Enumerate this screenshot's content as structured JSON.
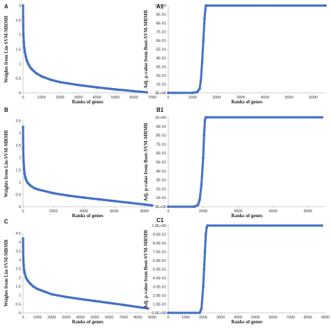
{
  "colors": {
    "series": "#4472c4",
    "axis": "#bfbfbf"
  },
  "chart_data": [
    {
      "id": "A",
      "type": "scatter",
      "label": "A",
      "ylabel": "Weights from Lin-SVM-MRMR",
      "xlabel": "Ranks of genes",
      "xlim": [
        0,
        7000
      ],
      "ylim": [
        0,
        3
      ],
      "xticks": [
        0,
        1000,
        2000,
        3000,
        4000,
        5000,
        6000,
        7000
      ],
      "yticks": [
        0,
        0.5,
        1,
        1.5,
        2,
        2.5,
        3
      ],
      "ytick_labels": [
        "0",
        "0.5",
        "1",
        "1.5",
        "2",
        "2.5",
        "3"
      ],
      "x": [
        1,
        5,
        10,
        20,
        40,
        70,
        100,
        150,
        200,
        300,
        400,
        500,
        700,
        1000,
        1500,
        2000,
        3000,
        4000,
        5000,
        6000,
        6700
      ],
      "y": [
        3.0,
        2.6,
        2.3,
        2.0,
        1.75,
        1.55,
        1.4,
        1.25,
        1.12,
        0.97,
        0.87,
        0.8,
        0.68,
        0.57,
        0.45,
        0.37,
        0.27,
        0.19,
        0.12,
        0.06,
        0.02
      ]
    },
    {
      "id": "A1",
      "type": "scatter",
      "label": "A1",
      "ylabel": "Adj. p-value from Boot-SVM-MRMR",
      "xlabel": "Ranks of genes",
      "xlim": [
        0,
        6500
      ],
      "ylim": [
        0,
        1
      ],
      "xticks": [
        0,
        1000,
        2000,
        3000,
        4000,
        5000,
        6000
      ],
      "yticks": [
        0,
        0.1,
        0.2,
        0.3,
        0.4,
        0.5,
        0.6,
        0.7,
        0.8,
        0.9,
        1
      ],
      "ytick_labels": [
        "0E+00",
        "1E-01",
        "2E-01",
        "3E-01",
        "4E-01",
        "5E-01",
        "6E-01",
        "7E-01",
        "8E-01",
        "9E-01",
        "1E+00"
      ],
      "x": [
        0,
        1000,
        1200,
        1300,
        1350,
        1400,
        1450,
        1500,
        1550,
        1600,
        6500
      ],
      "y": [
        0,
        0,
        0.01,
        0.05,
        0.15,
        0.35,
        0.6,
        0.85,
        1,
        1,
        1
      ]
    },
    {
      "id": "B",
      "type": "scatter",
      "label": "B",
      "ylabel": "Weights from Lin-SVM-MRMR",
      "xlabel": "Ranks of genes",
      "xlim": [
        0,
        8500
      ],
      "ylim": [
        0,
        3.5
      ],
      "xticks": [
        0,
        2000,
        4000,
        6000,
        8000
      ],
      "yticks": [
        0,
        0.5,
        1,
        1.5,
        2,
        2.5,
        3,
        3.5
      ],
      "ytick_labels": [
        "0",
        "0.5",
        "1",
        "1.5",
        "2",
        "2.5",
        "3",
        "3.5"
      ],
      "x": [
        1,
        5,
        10,
        20,
        40,
        70,
        100,
        150,
        200,
        300,
        500,
        800,
        1000,
        2000,
        3000,
        4000,
        5000,
        6000,
        7000,
        8000,
        8500
      ],
      "y": [
        3.25,
        2.8,
        2.4,
        2.1,
        1.8,
        1.55,
        1.35,
        1.2,
        1.1,
        0.98,
        0.85,
        0.74,
        0.7,
        0.55,
        0.45,
        0.37,
        0.3,
        0.23,
        0.16,
        0.09,
        0.05
      ]
    },
    {
      "id": "B1",
      "type": "scatter",
      "label": "B1",
      "ylabel": "Adj. p-value from Boot-SVM-MRMR",
      "xlabel": "Ranks of genes",
      "xlim": [
        0,
        9000
      ],
      "ylim": [
        0,
        1
      ],
      "xticks": [
        0,
        2000,
        4000,
        6000,
        8000
      ],
      "yticks": [
        0,
        0.1,
        0.2,
        0.3,
        0.4,
        0.5,
        0.6,
        0.7,
        0.8,
        0.9,
        1
      ],
      "ytick_labels": [
        "0E+00",
        "1E-01",
        "2E-01",
        "3E-01",
        "4E-01",
        "5E-01",
        "6E-01",
        "7E-01",
        "8E-01",
        "9E-01",
        "1E+00"
      ],
      "x": [
        0,
        1500,
        1700,
        1800,
        1900,
        2000,
        2050,
        2100,
        2150,
        8800
      ],
      "y": [
        0,
        0,
        0.02,
        0.08,
        0.25,
        0.55,
        0.8,
        0.97,
        1,
        1
      ]
    },
    {
      "id": "C",
      "type": "scatter",
      "label": "C",
      "ylabel": "Weights from Lin-SVM-MRMR",
      "xlabel": "Ranks of genes",
      "xlim": [
        0,
        9000
      ],
      "ylim": [
        0,
        4.5
      ],
      "xticks": [
        0,
        1000,
        2000,
        3000,
        4000,
        5000,
        6000,
        7000,
        8000,
        9000
      ],
      "yticks": [
        0,
        0.5,
        1,
        1.5,
        2,
        2.5,
        3,
        3.5,
        4,
        4.5
      ],
      "ytick_labels": [
        "0",
        "0.5",
        "1",
        "1.5",
        "2",
        "2.5",
        "3",
        "3.5",
        "4",
        "4.5"
      ],
      "x": [
        1,
        5,
        10,
        20,
        40,
        70,
        100,
        200,
        300,
        500,
        700,
        1000,
        1500,
        2000,
        3000,
        4000,
        5000,
        6000,
        7000,
        8000,
        8700
      ],
      "y": [
        4.2,
        3.8,
        3.4,
        3.0,
        2.7,
        2.45,
        2.3,
        2.0,
        1.85,
        1.65,
        1.5,
        1.35,
        1.2,
        1.05,
        0.9,
        0.78,
        0.67,
        0.56,
        0.45,
        0.33,
        0.25
      ]
    },
    {
      "id": "C1",
      "type": "scatter",
      "label": "C1",
      "ylabel": "Adj. p-value from Boot-SVM-MRMR",
      "xlabel": "Ranks of genes",
      "xlim": [
        0,
        9000
      ],
      "ylim": [
        0,
        1
      ],
      "xticks": [
        0,
        1000,
        2000,
        3000,
        4000,
        5000,
        6000,
        7000,
        8000,
        9000
      ],
      "yticks": [
        0,
        0.1,
        0.2,
        0.3,
        0.4,
        0.5,
        0.6,
        0.7,
        0.8,
        0.9,
        1
      ],
      "ytick_labels": [
        "0.0E+00",
        "1.0E-01",
        "2.0E-01",
        "3.0E-01",
        "4.0E-01",
        "5.0E-01",
        "6.0E-01",
        "7.0E-01",
        "8.0E-01",
        "9.0E-01",
        "1.0E+00"
      ],
      "x": [
        0,
        1800,
        1900,
        2000,
        2050,
        2100,
        2150,
        2200,
        2250,
        8800
      ],
      "y": [
        0,
        0,
        0.05,
        0.3,
        0.5,
        0.7,
        0.9,
        0.98,
        1,
        1
      ]
    }
  ]
}
